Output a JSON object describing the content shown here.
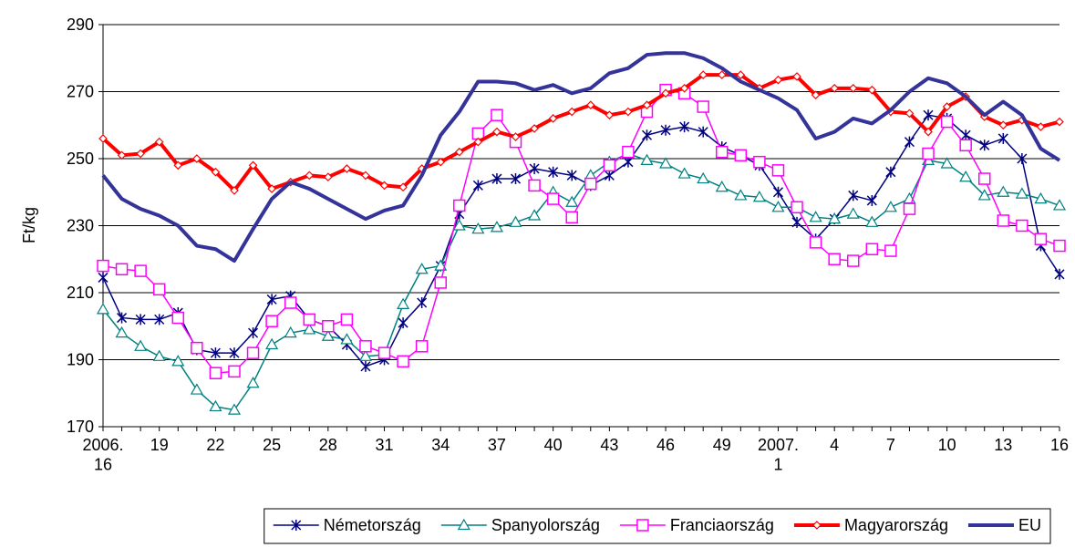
{
  "chart_data": {
    "type": "line",
    "y_label": "Ft/kg",
    "ylim": [
      170,
      290
    ],
    "yticks": [
      170,
      190,
      210,
      230,
      250,
      270,
      290
    ],
    "grid": true,
    "legend": "bottom",
    "categories": [
      "2006.\n16",
      null,
      null,
      "19",
      null,
      null,
      "22",
      null,
      null,
      "25",
      null,
      null,
      "28",
      null,
      null,
      "31",
      null,
      null,
      "34",
      null,
      null,
      "37",
      null,
      null,
      "40",
      null,
      null,
      "43",
      null,
      null,
      "46",
      null,
      null,
      "49",
      null,
      null,
      "2007.\n1",
      null,
      null,
      "4",
      null,
      null,
      "7",
      null,
      null,
      "10",
      null,
      null,
      "13",
      null,
      null,
      "16"
    ],
    "series": [
      {
        "name": "Németország",
        "color": "#000080",
        "marker": "star",
        "width": 1.5,
        "values": [
          214.5,
          202.5,
          202,
          202,
          204,
          193,
          192,
          192,
          198,
          208,
          209,
          202,
          200,
          194.5,
          188,
          190,
          201,
          207,
          218,
          233.5,
          242,
          244,
          244,
          247,
          246,
          245,
          242,
          245,
          249,
          257,
          258.5,
          259.5,
          258,
          253.5,
          251,
          248,
          240,
          231,
          226,
          232,
          239,
          237.5,
          246,
          255,
          263,
          262,
          257,
          254,
          256,
          250,
          224,
          215.5
        ]
      },
      {
        "name": "Spanyolország",
        "color": "#008080",
        "marker": "triangle",
        "width": 1.5,
        "values": [
          205,
          198,
          194,
          191,
          189.5,
          181,
          176,
          175,
          183,
          194.5,
          198,
          199,
          197,
          196,
          191,
          191.5,
          206.5,
          217,
          218,
          230,
          229,
          229.5,
          231,
          233,
          240,
          237,
          245,
          249,
          251.5,
          249.5,
          248.5,
          245.5,
          244,
          241.5,
          239,
          238.5,
          235.5,
          235.5,
          232.5,
          232,
          233.5,
          231,
          235.5,
          238,
          249.5,
          248.5,
          244.5,
          239,
          240,
          239.5,
          238,
          236
        ]
      },
      {
        "name": "Franciaország",
        "color": "#ff00ff",
        "marker": "square",
        "width": 1.5,
        "values": [
          218,
          217,
          216.5,
          211,
          202.5,
          193.5,
          186,
          186.5,
          192,
          201.5,
          207,
          202,
          200,
          202,
          194,
          192,
          189.5,
          194,
          213,
          236,
          257.5,
          263,
          255,
          242,
          238,
          232.5,
          242.5,
          248,
          252,
          264,
          270.5,
          269.5,
          265.5,
          252,
          251,
          249,
          246.5,
          235.5,
          225,
          220,
          219.5,
          223,
          222.5,
          235,
          251.5,
          261,
          254,
          244,
          231.5,
          230,
          226,
          224
        ]
      },
      {
        "name": "Magyarország",
        "color": "#ff0000",
        "marker": "diamond",
        "width": 4,
        "values": [
          256,
          251,
          251.5,
          255,
          248,
          250,
          246,
          240.5,
          248,
          241,
          243,
          245,
          244.5,
          247,
          245,
          242,
          241.5,
          247,
          249,
          252,
          255,
          258,
          256.5,
          259,
          262,
          264,
          266,
          263,
          264,
          266,
          269.5,
          271,
          275,
          275,
          275,
          271,
          273.5,
          274.5,
          269,
          271,
          271,
          270.5,
          264,
          263.5,
          258,
          265.5,
          268.5,
          262.5,
          260,
          261.5,
          259.5,
          261
        ]
      },
      {
        "name": "EU",
        "color": "#333399",
        "marker": null,
        "width": 4,
        "values": [
          245,
          238,
          235,
          233,
          230,
          224,
          223,
          219.5,
          229,
          238,
          243,
          241,
          238,
          235,
          232,
          234.5,
          236,
          245,
          257,
          264,
          273,
          273,
          272.5,
          270.5,
          272,
          269.5,
          271,
          275.5,
          277,
          281,
          281.5,
          281.5,
          280,
          277,
          273,
          270.5,
          268,
          264.5,
          256,
          258,
          262,
          260.5,
          264.5,
          270,
          274,
          272.5,
          268.5,
          263,
          267,
          263,
          253,
          249.5
        ]
      }
    ]
  }
}
